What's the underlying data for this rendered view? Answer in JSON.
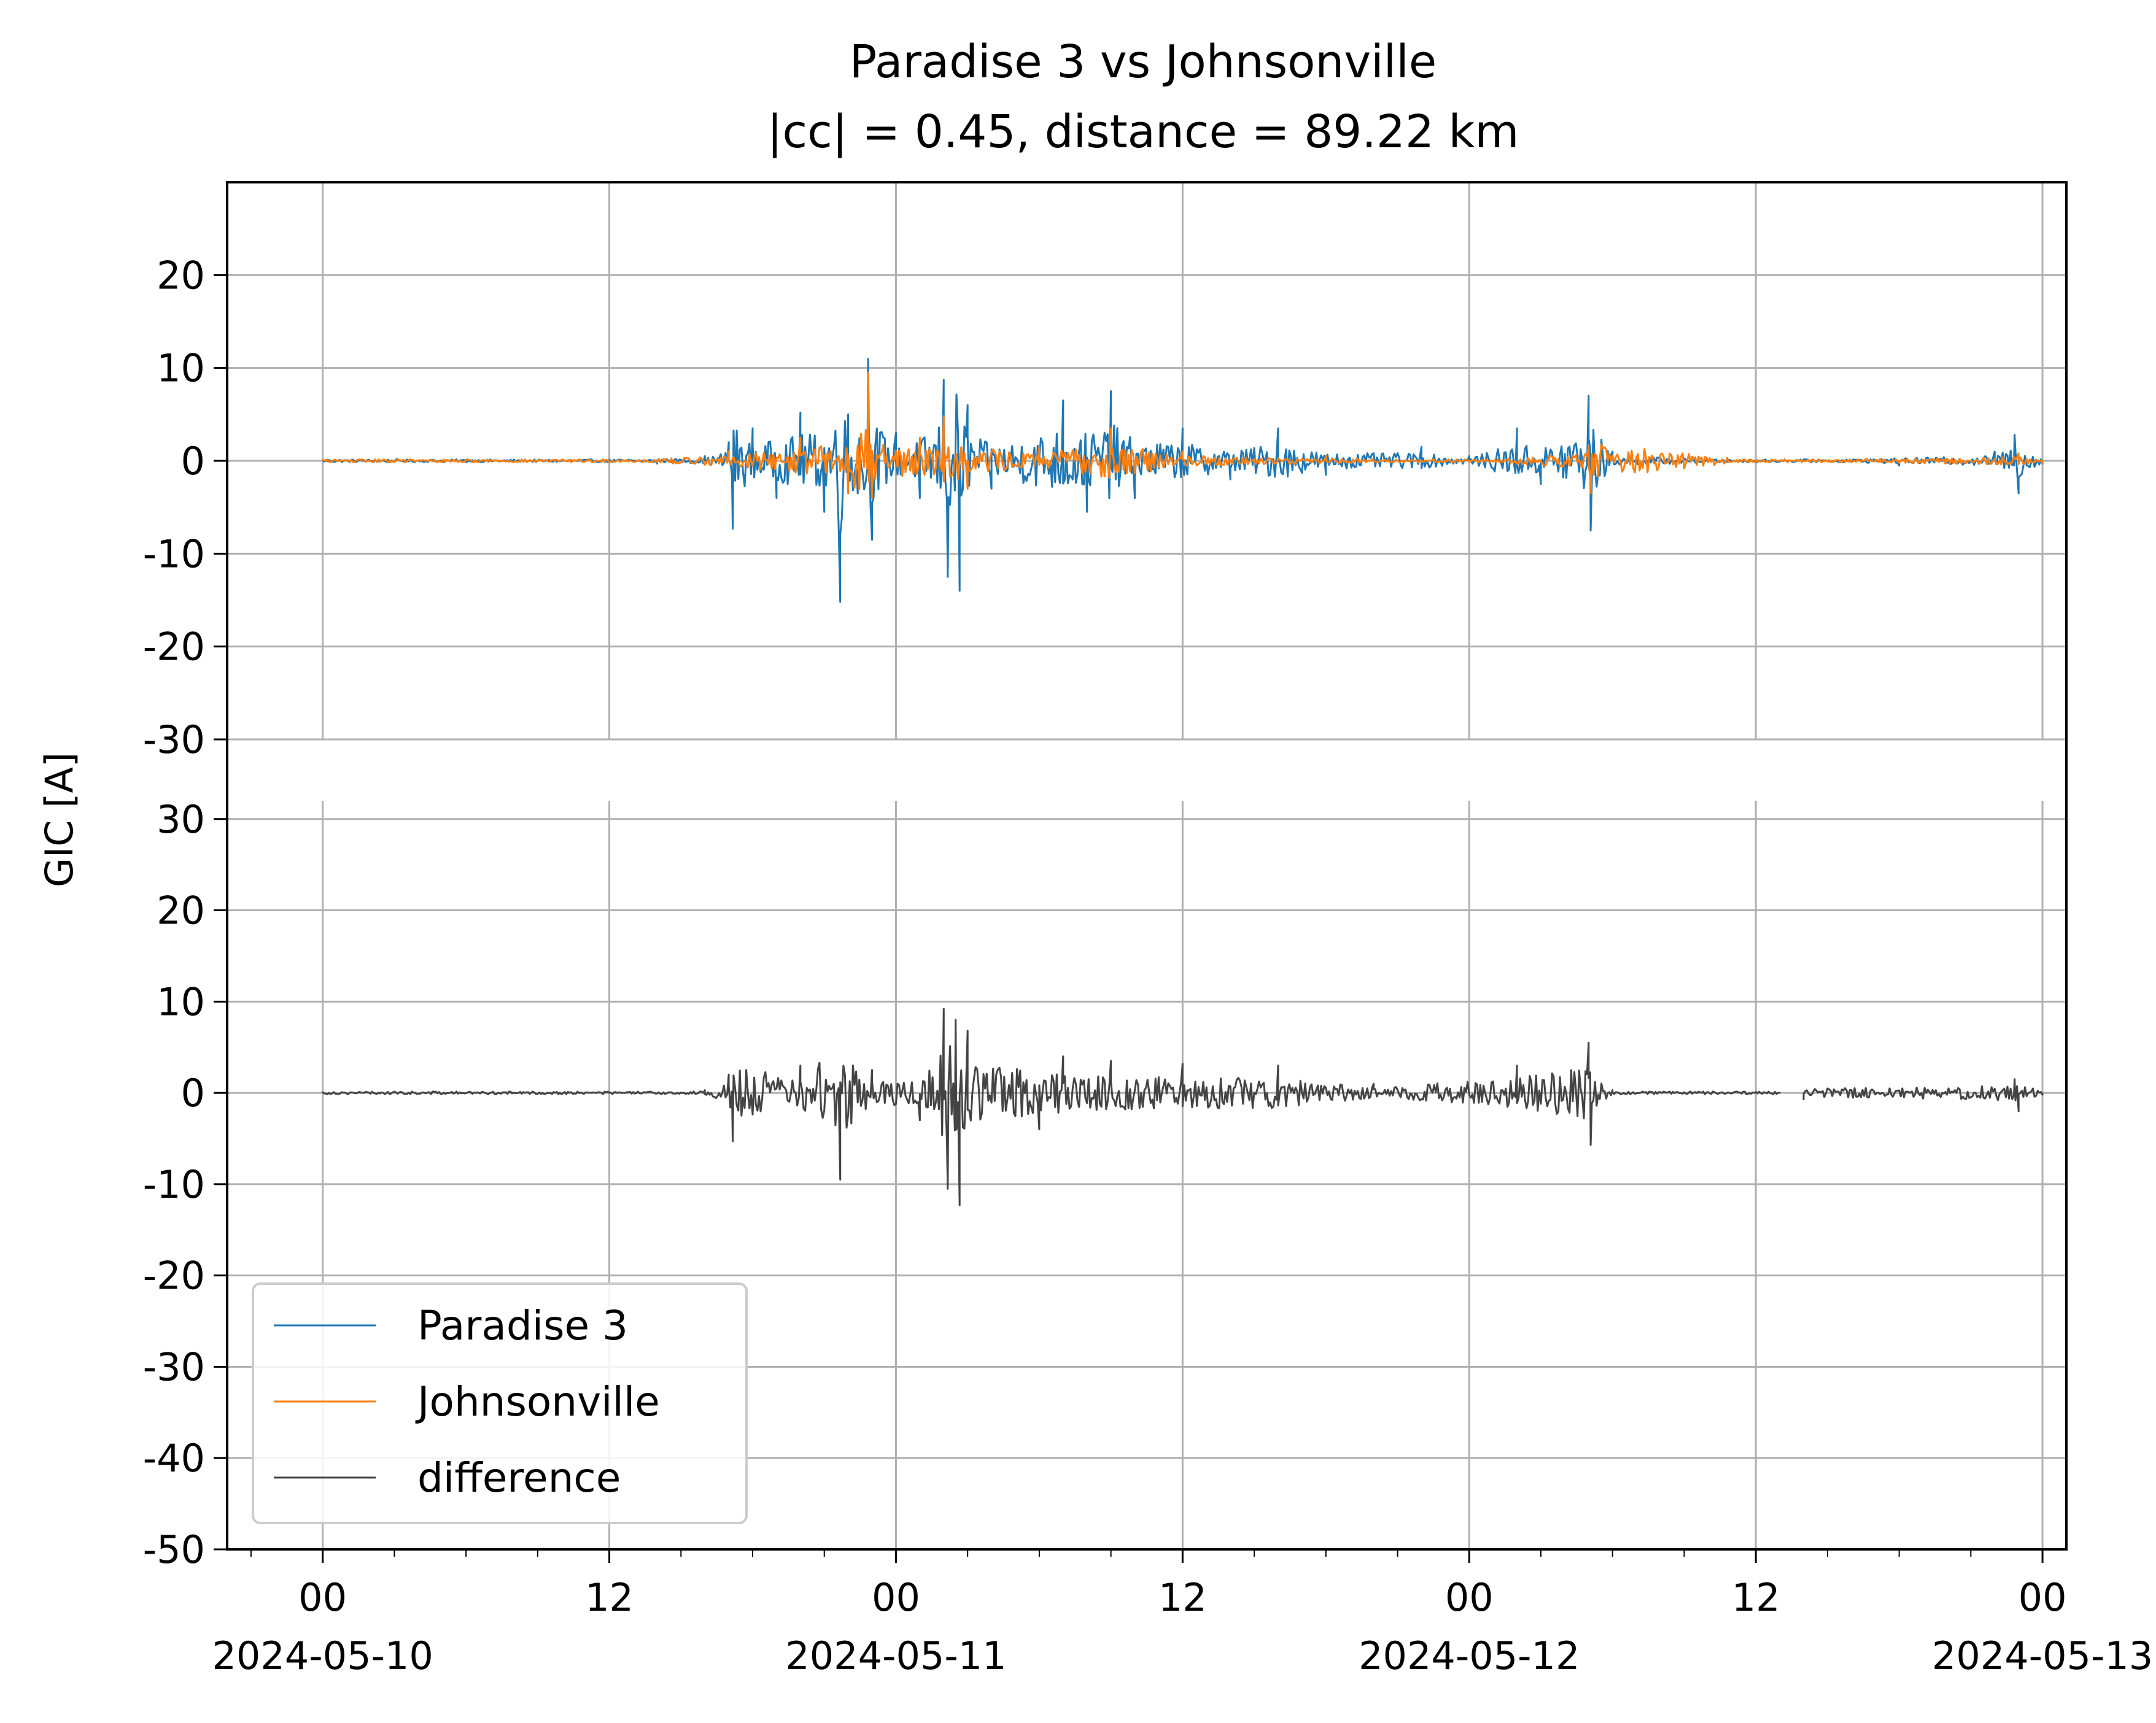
{
  "chart_data": {
    "type": "line",
    "title": "Paradise 3 vs Johnsonville",
    "subtitle": "|cc| = 0.45, distance = 89.22 km",
    "ylabel": "GIC [A]",
    "xlabel": "",
    "grid": true,
    "legend_position": "lower-left",
    "x_range": [
      "2024-05-09T20:00",
      "2024-05-13T01:00"
    ],
    "x_ticks": [
      {
        "t": "2024-05-10T00:00",
        "label": "00",
        "date": "2024-05-10"
      },
      {
        "t": "2024-05-10T12:00",
        "label": "12",
        "date": ""
      },
      {
        "t": "2024-05-11T00:00",
        "label": "00",
        "date": "2024-05-11"
      },
      {
        "t": "2024-05-11T12:00",
        "label": "12",
        "date": ""
      },
      {
        "t": "2024-05-12T00:00",
        "label": "00",
        "date": "2024-05-12"
      },
      {
        "t": "2024-05-12T12:00",
        "label": "12",
        "date": ""
      },
      {
        "t": "2024-05-13T00:00",
        "label": "00",
        "date": "2024-05-13"
      }
    ],
    "panels": [
      {
        "ylim": [
          -30,
          30
        ],
        "yticks": [
          20,
          10,
          0,
          -10,
          -20,
          -30
        ],
        "ytick_labels": [
          "20",
          "10",
          "0",
          "-10",
          "-20",
          "-30"
        ],
        "series": [
          {
            "name": "Paradise 3",
            "color": "#1f77b4",
            "points": [
              [
                "2024-05-10T00:00",
                0.0
              ],
              [
                "2024-05-10T06:00",
                0.1
              ],
              [
                "2024-05-10T12:00",
                0.0
              ],
              [
                "2024-05-10T14:00",
                -0.3
              ],
              [
                "2024-05-10T16:00",
                0.5
              ],
              [
                "2024-05-10T17:00",
                2.0
              ],
              [
                "2024-05-10T17:10",
                -7.3
              ],
              [
                "2024-05-10T18:00",
                3.5
              ],
              [
                "2024-05-10T19:00",
                -4.0
              ],
              [
                "2024-05-10T20:00",
                5.2
              ],
              [
                "2024-05-10T21:00",
                -5.5
              ],
              [
                "2024-05-10T21:40",
                -15.2
              ],
              [
                "2024-05-10T22:00",
                5.0
              ],
              [
                "2024-05-10T22:50",
                11.0
              ],
              [
                "2024-05-10T23:00",
                -8.5
              ],
              [
                "2024-05-11T00:00",
                3.0
              ],
              [
                "2024-05-11T01:00",
                -4.0
              ],
              [
                "2024-05-11T02:00",
                8.7
              ],
              [
                "2024-05-11T02:10",
                -12.5
              ],
              [
                "2024-05-11T02:40",
                -14.0
              ],
              [
                "2024-05-11T03:00",
                6.0
              ],
              [
                "2024-05-11T04:00",
                -3.0
              ],
              [
                "2024-05-11T07:00",
                6.5
              ],
              [
                "2024-05-11T08:00",
                -5.5
              ],
              [
                "2024-05-11T09:00",
                7.5
              ],
              [
                "2024-05-11T10:00",
                -4.0
              ],
              [
                "2024-05-11T12:00",
                3.5
              ],
              [
                "2024-05-11T14:00",
                -2.0
              ],
              [
                "2024-05-11T16:00",
                3.5
              ],
              [
                "2024-05-11T18:00",
                -1.5
              ],
              [
                "2024-05-11T22:00",
                1.5
              ],
              [
                "2024-05-12T00:00",
                0.5
              ],
              [
                "2024-05-12T02:00",
                3.5
              ],
              [
                "2024-05-12T03:00",
                -2.5
              ],
              [
                "2024-05-12T05:00",
                7.0
              ],
              [
                "2024-05-12T05:05",
                -7.5
              ],
              [
                "2024-05-12T06:00",
                1.0
              ],
              [
                "2024-05-12T12:00",
                0.0
              ],
              [
                "2024-05-12T18:00",
                -0.5
              ],
              [
                "2024-05-12T22:00",
                1.0
              ],
              [
                "2024-05-12T22:50",
                2.8
              ],
              [
                "2024-05-12T23:00",
                -3.5
              ],
              [
                "2024-05-13T00:00",
                -0.3
              ]
            ]
          },
          {
            "name": "Johnsonville",
            "color": "#ff7f0e",
            "points": [
              [
                "2024-05-10T00:00",
                0.0
              ],
              [
                "2024-05-10T12:00",
                0.0
              ],
              [
                "2024-05-10T17:00",
                1.0
              ],
              [
                "2024-05-10T20:00",
                2.5
              ],
              [
                "2024-05-10T22:00",
                -3.5
              ],
              [
                "2024-05-10T22:50",
                9.5
              ],
              [
                "2024-05-10T23:00",
                -4.0
              ],
              [
                "2024-05-11T01:00",
                2.5
              ],
              [
                "2024-05-11T02:00",
                4.8
              ],
              [
                "2024-05-11T03:00",
                -3.0
              ],
              [
                "2024-05-11T06:00",
                1.5
              ],
              [
                "2024-05-11T09:00",
                3.5
              ],
              [
                "2024-05-11T12:00",
                1.0
              ],
              [
                "2024-05-11T18:00",
                0.5
              ],
              [
                "2024-05-12T00:00",
                0.0
              ],
              [
                "2024-05-12T05:00",
                1.5
              ],
              [
                "2024-05-12T05:05",
                -3.5
              ],
              [
                "2024-05-12T12:00",
                0.0
              ],
              [
                "2024-05-12T23:00",
                0.8
              ],
              [
                "2024-05-13T00:00",
                -0.2
              ]
            ]
          }
        ]
      },
      {
        "ylim": [
          -50,
          32
        ],
        "yticks": [
          30,
          20,
          10,
          0,
          -10,
          -20,
          -30,
          -40,
          -50
        ],
        "ytick_labels": [
          "30",
          "20",
          "10",
          "0",
          "-10",
          "-20",
          "-30",
          "-40",
          "-50"
        ],
        "series": [
          {
            "name": "difference",
            "color": "#444444",
            "gap": [
              "2024-05-12T13:00",
              "2024-05-12T14:00"
            ],
            "points": [
              [
                "2024-05-10T00:00",
                0.0
              ],
              [
                "2024-05-10T12:00",
                0.0
              ],
              [
                "2024-05-10T16:00",
                0.3
              ],
              [
                "2024-05-10T17:00",
                2.0
              ],
              [
                "2024-05-10T17:10",
                -5.3
              ],
              [
                "2024-05-10T20:00",
                3.0
              ],
              [
                "2024-05-10T21:40",
                -9.5
              ],
              [
                "2024-05-10T23:00",
                2.5
              ],
              [
                "2024-05-11T01:00",
                -3.0
              ],
              [
                "2024-05-11T02:00",
                9.2
              ],
              [
                "2024-05-11T02:10",
                -10.5
              ],
              [
                "2024-05-11T02:30",
                8.0
              ],
              [
                "2024-05-11T02:40",
                -12.3
              ],
              [
                "2024-05-11T03:00",
                6.8
              ],
              [
                "2024-05-11T06:00",
                -4.0
              ],
              [
                "2024-05-11T07:00",
                4.0
              ],
              [
                "2024-05-11T09:00",
                3.5
              ],
              [
                "2024-05-11T12:00",
                3.2
              ],
              [
                "2024-05-11T16:00",
                3.0
              ],
              [
                "2024-05-11T20:00",
                1.0
              ],
              [
                "2024-05-12T02:00",
                3.0
              ],
              [
                "2024-05-12T05:00",
                5.5
              ],
              [
                "2024-05-12T05:05",
                -5.7
              ],
              [
                "2024-05-12T06:00",
                0.3
              ],
              [
                "2024-05-12T13:00",
                0.0
              ],
              [
                "2024-05-12T14:00",
                -0.8
              ],
              [
                "2024-05-12T22:50",
                1.5
              ],
              [
                "2024-05-12T23:00",
                -2.0
              ],
              [
                "2024-05-13T00:00",
                -0.2
              ]
            ]
          }
        ]
      }
    ],
    "legend": [
      {
        "name": "Paradise 3",
        "color": "#1f77b4"
      },
      {
        "name": "Johnsonville",
        "color": "#ff7f0e"
      },
      {
        "name": "difference",
        "color": "#444444"
      }
    ]
  }
}
